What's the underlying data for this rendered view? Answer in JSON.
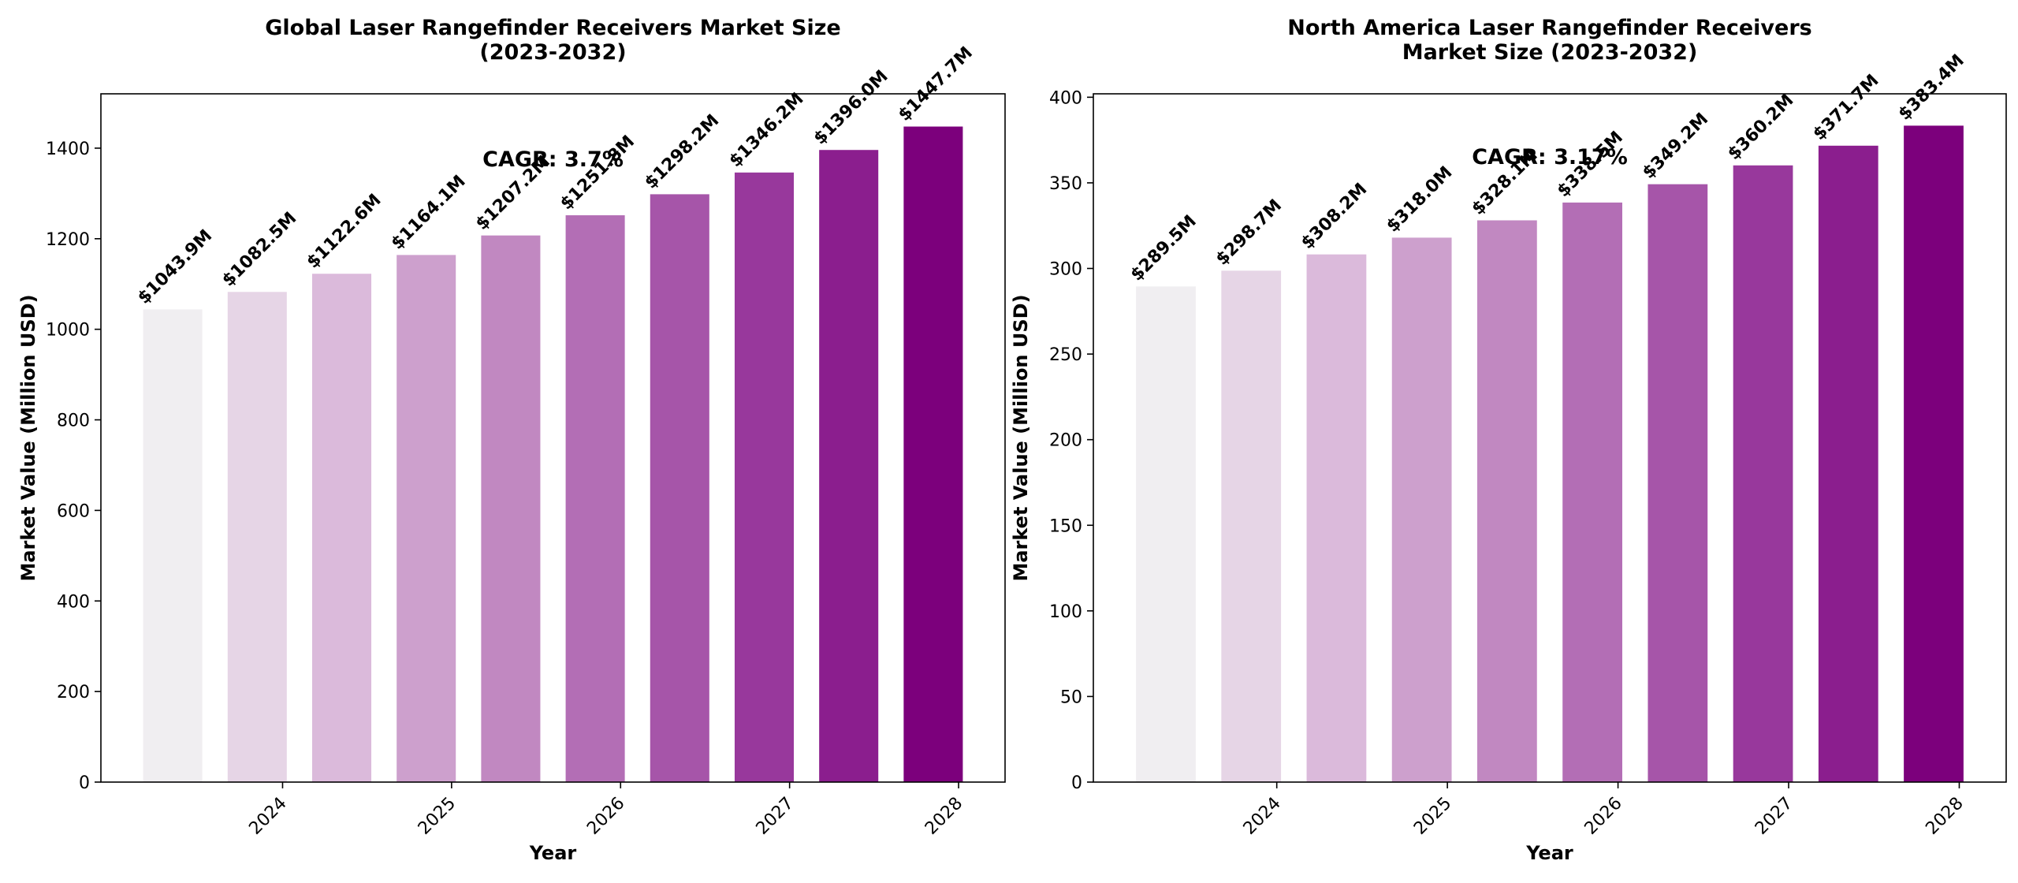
{
  "chart_data": [
    {
      "type": "bar",
      "title": "Global Laser Rangefinder Receivers Market Size\n(2023-2032)",
      "xlabel": "Year",
      "ylabel": "Market Value (Million USD)",
      "values": [
        1043.9,
        1082.5,
        1122.6,
        1164.1,
        1207.2,
        1251.8,
        1298.2,
        1346.2,
        1396.0,
        1447.7
      ],
      "data_labels": [
        "$1043.9M",
        "$1082.5M",
        "$1122.6M",
        "$1164.1M",
        "$1207.2M",
        "$1251.8M",
        "$1298.2M",
        "$1346.2M",
        "$1396.0M",
        "$1447.7M"
      ],
      "x_ticks": [
        {
          "label": "2024",
          "at": 1.3
        },
        {
          "label": "2025",
          "at": 3.3
        },
        {
          "label": "2026",
          "at": 5.3
        },
        {
          "label": "2027",
          "at": 7.3
        },
        {
          "label": "2028",
          "at": 9.3
        }
      ],
      "xlim": [
        -0.85,
        9.85
      ],
      "ylim": [
        0,
        1520
      ],
      "yticks": [
        0,
        200,
        400,
        600,
        800,
        1000,
        1200,
        1400
      ],
      "annotation": "CAGR: 3.7%",
      "colors": [
        "#f0eef1",
        "#e6d5e6",
        "#dbbadb",
        "#cda0cd",
        "#c188c1",
        "#b36eb5",
        "#a655a9",
        "#98389c",
        "#8b1e8e",
        "#7c007c"
      ]
    },
    {
      "type": "bar",
      "title": "North America Laser Rangefinder Receivers\nMarket Size (2023-2032)",
      "xlabel": "Year",
      "ylabel": "Market Value (Million USD)",
      "values": [
        289.5,
        298.7,
        308.2,
        318.0,
        328.1,
        338.5,
        349.2,
        360.2,
        371.7,
        383.4
      ],
      "data_labels": [
        "$289.5M",
        "$298.7M",
        "$308.2M",
        "$318.0M",
        "$328.1M",
        "$338.5M",
        "$349.2M",
        "$360.2M",
        "$371.7M",
        "$383.4M"
      ],
      "x_ticks": [
        {
          "label": "2024",
          "at": 1.3
        },
        {
          "label": "2025",
          "at": 3.3
        },
        {
          "label": "2026",
          "at": 5.3
        },
        {
          "label": "2027",
          "at": 7.3
        },
        {
          "label": "2028",
          "at": 9.3
        }
      ],
      "xlim": [
        -0.85,
        9.85
      ],
      "ylim": [
        0,
        402
      ],
      "yticks": [
        0,
        50,
        100,
        150,
        200,
        250,
        300,
        350,
        400
      ],
      "annotation": "CAGR: 3.17%",
      "colors": [
        "#f0eef1",
        "#e6d5e6",
        "#dbbadb",
        "#cda0cd",
        "#c188c1",
        "#b36eb5",
        "#a655a9",
        "#98389c",
        "#8b1e8e",
        "#7c007c"
      ]
    }
  ]
}
